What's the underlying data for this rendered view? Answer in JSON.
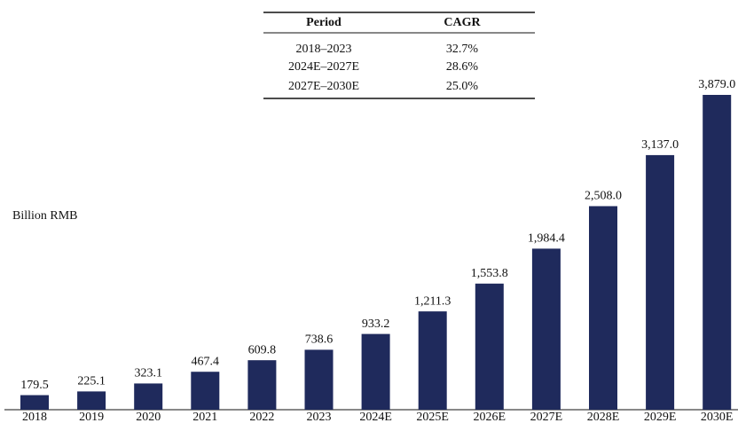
{
  "chart_data": {
    "type": "bar",
    "ylabel": "Billion RMB",
    "categories": [
      "2018",
      "2019",
      "2020",
      "2021",
      "2022",
      "2023",
      "2024E",
      "2025E",
      "2026E",
      "2027E",
      "2028E",
      "2029E",
      "2030E"
    ],
    "values": [
      179.5,
      225.1,
      323.1,
      467.4,
      609.8,
      738.6,
      933.2,
      1211.3,
      1553.8,
      1984.4,
      2508.0,
      3137.0,
      3879.0
    ],
    "value_labels": [
      "179.5",
      "225.1",
      "323.1",
      "467.4",
      "609.8",
      "738.6",
      "933.2",
      "1,211.3",
      "1,553.8",
      "1,984.4",
      "2,508.0",
      "3,137.0",
      "3,879.0"
    ],
    "color": "#1f2a5c"
  },
  "table": {
    "header": [
      "Period",
      "CAGR"
    ],
    "rows": [
      [
        "2018–2023",
        "32.7%"
      ],
      [
        "2024E–2027E",
        "28.6%"
      ],
      [
        "2027E–2030E",
        "25.0%"
      ]
    ]
  }
}
